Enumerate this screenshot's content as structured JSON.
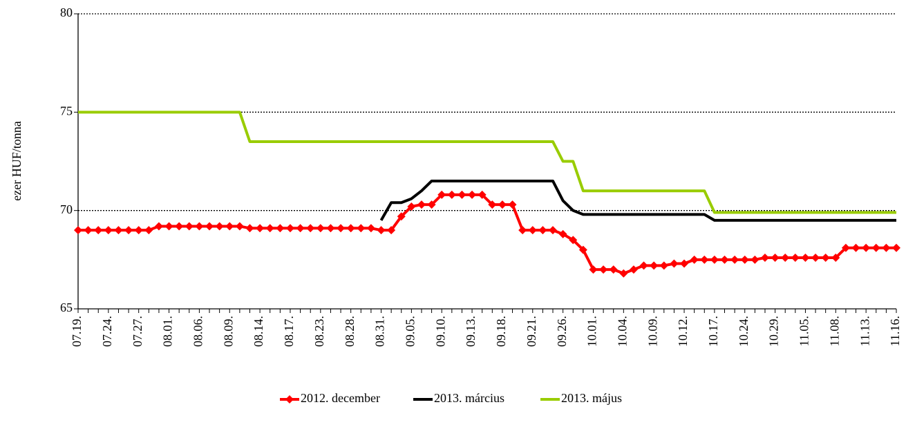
{
  "chart_data": {
    "type": "line",
    "y_label": "ezer HUF/tonna",
    "categories": [
      "07.19.",
      null,
      null,
      "07.24.",
      null,
      null,
      "07.27.",
      null,
      null,
      "08.01.",
      null,
      null,
      "08.06.",
      null,
      null,
      "08.09.",
      null,
      null,
      "08.14.",
      null,
      null,
      "08.17.",
      null,
      null,
      "08.23.",
      null,
      null,
      "08.28.",
      null,
      null,
      "08.31.",
      null,
      null,
      "09.05.",
      null,
      null,
      "09.10.",
      null,
      null,
      "09.13.",
      null,
      null,
      "09.18.",
      null,
      null,
      "09.21.",
      null,
      null,
      "09.26.",
      null,
      null,
      "10.01.",
      null,
      null,
      "10.04.",
      null,
      null,
      "10.09.",
      null,
      null,
      "10.12.",
      null,
      null,
      "10.17.",
      null,
      null,
      "10.24.",
      null,
      null,
      "10.29.",
      null,
      null,
      "11.05.",
      null,
      null,
      "11.08.",
      null,
      null,
      "11.13.",
      null,
      null,
      "11.16."
    ],
    "series": [
      {
        "name": "2012. december",
        "color": "#ff0000",
        "marker": "diamond",
        "values": [
          69.0,
          69.0,
          69.0,
          69.0,
          69.0,
          69.0,
          69.0,
          69.0,
          69.2,
          69.2,
          69.2,
          69.2,
          69.2,
          69.2,
          69.2,
          69.2,
          69.2,
          69.1,
          69.1,
          69.1,
          69.1,
          69.1,
          69.1,
          69.1,
          69.1,
          69.1,
          69.1,
          69.1,
          69.1,
          69.1,
          69.0,
          69.0,
          69.7,
          70.2,
          70.3,
          70.3,
          70.8,
          70.8,
          70.8,
          70.8,
          70.8,
          70.3,
          70.3,
          70.3,
          69.0,
          69.0,
          69.0,
          69.0,
          68.8,
          68.5,
          68.0,
          67.0,
          67.0,
          67.0,
          66.8,
          67.0,
          67.2,
          67.2,
          67.2,
          67.3,
          67.3,
          67.5,
          67.5,
          67.5,
          67.5,
          67.5,
          67.5,
          67.5,
          67.6,
          67.6,
          67.6,
          67.6,
          67.6,
          67.6,
          67.6,
          67.6,
          68.1,
          68.1,
          68.1,
          68.1,
          68.1,
          68.1
        ]
      },
      {
        "name": "2013. március",
        "color": "#000000",
        "values": [
          null,
          null,
          null,
          null,
          null,
          null,
          null,
          null,
          null,
          null,
          null,
          null,
          null,
          null,
          null,
          null,
          null,
          null,
          null,
          null,
          null,
          null,
          null,
          null,
          null,
          null,
          null,
          null,
          null,
          null,
          69.5,
          70.4,
          70.4,
          70.6,
          71.0,
          71.5,
          71.5,
          71.5,
          71.5,
          71.5,
          71.5,
          71.5,
          71.5,
          71.5,
          71.5,
          71.5,
          71.5,
          71.5,
          70.5,
          70.0,
          69.8,
          69.8,
          69.8,
          69.8,
          69.8,
          69.8,
          69.8,
          69.8,
          69.8,
          69.8,
          69.8,
          69.8,
          69.8,
          69.5,
          69.5,
          69.5,
          69.5,
          69.5,
          69.5,
          69.5,
          69.5,
          69.5,
          69.5,
          69.5,
          69.5,
          69.5,
          69.5,
          69.5,
          69.5,
          69.5,
          69.5,
          69.5
        ]
      },
      {
        "name": "2013. május",
        "color": "#99cc00",
        "values": [
          75,
          75,
          75,
          75,
          75,
          75,
          75,
          75,
          75,
          75,
          75,
          75,
          75,
          75,
          75,
          75,
          75,
          73.5,
          73.5,
          73.5,
          73.5,
          73.5,
          73.5,
          73.5,
          73.5,
          73.5,
          73.5,
          73.5,
          73.5,
          73.5,
          73.5,
          73.5,
          73.5,
          73.5,
          73.5,
          73.5,
          73.5,
          73.5,
          73.5,
          73.5,
          73.5,
          73.5,
          73.5,
          73.5,
          73.5,
          73.5,
          73.5,
          73.5,
          72.5,
          72.5,
          71.0,
          71.0,
          71.0,
          71.0,
          71.0,
          71.0,
          71.0,
          71.0,
          71.0,
          71.0,
          71.0,
          71.0,
          71.0,
          69.9,
          69.9,
          69.9,
          69.9,
          69.9,
          69.9,
          69.9,
          69.9,
          69.9,
          69.9,
          69.9,
          69.9,
          69.9,
          69.9,
          69.9,
          69.9,
          69.9,
          69.9,
          69.9
        ]
      }
    ],
    "ylim": [
      65,
      80
    ],
    "yticks": [
      65,
      70,
      75,
      80
    ],
    "grid": true,
    "legend": "bottom"
  }
}
